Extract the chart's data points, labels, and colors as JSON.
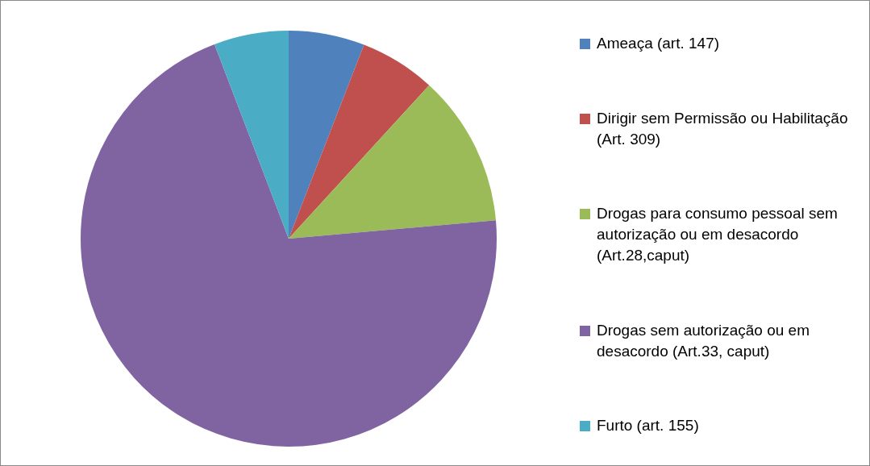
{
  "chart_data": {
    "type": "pie",
    "categories": [
      "Ameaça (art. 147)",
      "Dirigir sem Permissão ou Habilitação (Art. 309)",
      "Drogas para consumo pessoal sem autorização ou em desacordo (Art.28,caput)",
      "Drogas sem autorização ou em desacordo (Art.33, caput)",
      "Furto (art. 155)"
    ],
    "values": [
      5.9,
      5.9,
      11.8,
      70.6,
      5.8
    ],
    "colors": [
      "#4f81bd",
      "#c0504d",
      "#9bbb59",
      "#8064a2",
      "#4bacc6"
    ],
    "legend": "right"
  }
}
